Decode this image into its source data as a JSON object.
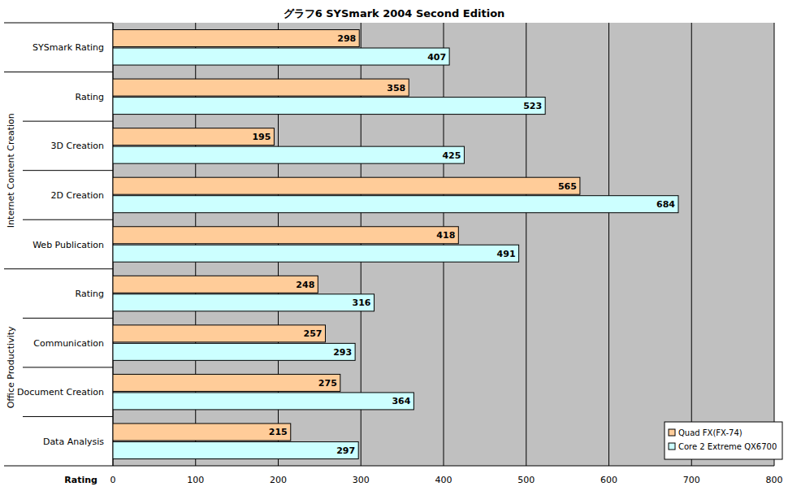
{
  "chart_data": {
    "type": "bar",
    "orientation": "horizontal",
    "title": "グラフ6  SYSmark 2004 Second Edition",
    "x_label": "Rating",
    "categories": [
      "SYSmark Rating",
      "Rating",
      "3D Creation",
      "2D Creation",
      "Web Publication",
      "Rating",
      "Communication",
      "Document Creation",
      "Data Analysis"
    ],
    "category_groups": [
      {
        "label": "Internet Content Creation",
        "start": 1,
        "end": 4
      },
      {
        "label": "Office Productivity",
        "start": 5,
        "end": 8
      }
    ],
    "series": [
      {
        "name": "Quad FX(FX-74)",
        "color": "#ffcc99",
        "values": [
          298,
          358,
          195,
          565,
          418,
          248,
          257,
          275,
          215
        ]
      },
      {
        "name": "Core 2 Extreme QX6700",
        "color": "#ccffff",
        "values": [
          407,
          523,
          425,
          684,
          491,
          316,
          293,
          364,
          297
        ]
      }
    ],
    "xlim": [
      0,
      800
    ],
    "xticks": [
      0,
      100,
      200,
      300,
      400,
      500,
      600,
      700,
      800
    ],
    "grid": true,
    "legend": "bottom-right",
    "data_labels": true
  }
}
